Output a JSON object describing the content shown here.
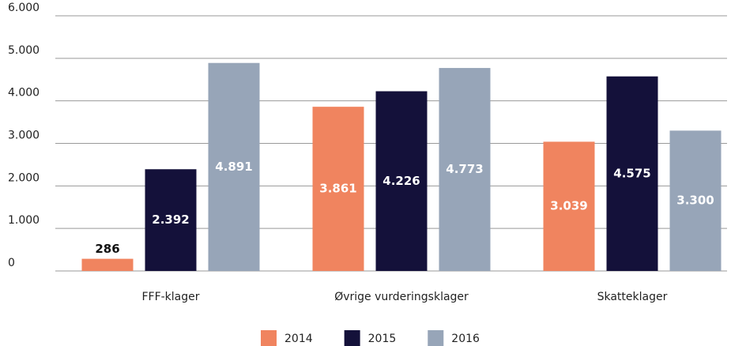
{
  "chart_data": {
    "type": "bar",
    "categories": [
      "FFF-klager",
      "Øvrige vurderingsklager",
      "Skatteklager"
    ],
    "series": [
      {
        "name": "2014",
        "color": "#f0845f",
        "values": [
          286,
          3861,
          3039
        ],
        "value_labels": [
          "286",
          "3.861",
          "3.039"
        ]
      },
      {
        "name": "2015",
        "color": "#14113a",
        "values": [
          2392,
          4226,
          4575
        ],
        "value_labels": [
          "2.392",
          "4.226",
          "4.575"
        ]
      },
      {
        "name": "2016",
        "color": "#97a5b8",
        "values": [
          4891,
          4773,
          3300
        ],
        "value_labels": [
          "4.891",
          "4.773",
          "3.300"
        ]
      }
    ],
    "ylim": [
      0,
      6000
    ],
    "yticks": [
      0,
      {
        "value": 1000,
        "label": "1.000"
      },
      {
        "value": 2000,
        "label": "2.000"
      },
      {
        "value": 3000,
        "label": "3.000"
      },
      {
        "value": 4000,
        "label": "4.000"
      },
      {
        "value": 5000,
        "label": "5.000"
      },
      {
        "value": 6000,
        "label": "6.000"
      }
    ],
    "grid": true,
    "legend": "bottom"
  }
}
